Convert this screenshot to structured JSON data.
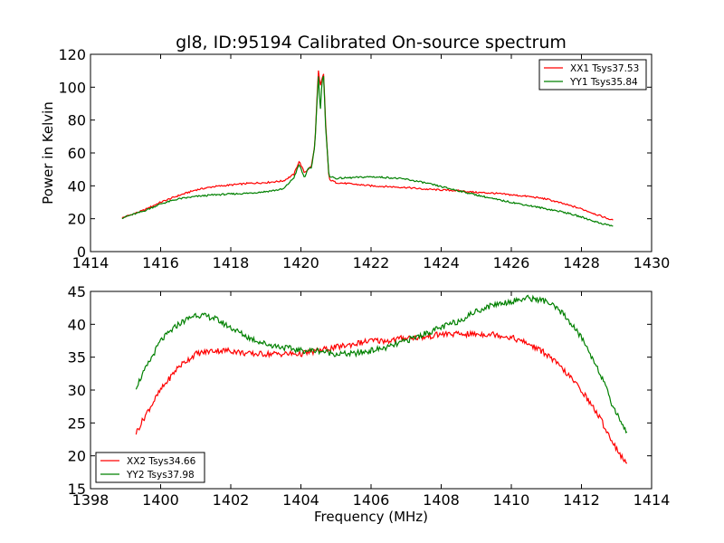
{
  "figure": {
    "title": "gl8, ID:95194 Calibrated On-source spectrum",
    "xlabel": "Frequency (MHz)"
  },
  "chart_data": [
    {
      "type": "line",
      "title": "gl8, ID:95194 Calibrated On-source spectrum",
      "xlabel": "",
      "ylabel": "Power in Kelvin",
      "xlim": [
        1414,
        1430
      ],
      "ylim": [
        0,
        120
      ],
      "xticks": [
        "1414",
        "1416",
        "1418",
        "1420",
        "1422",
        "1424",
        "1426",
        "1428",
        "1430"
      ],
      "yticks": [
        "0",
        "20",
        "40",
        "60",
        "80",
        "100",
        "120"
      ],
      "legend_position": "top-right",
      "grid": false,
      "series": [
        {
          "name": "XX1 Tsys37.53",
          "color": "#ff0000",
          "x": [
            1414.9,
            1415.5,
            1416,
            1416.5,
            1417,
            1417.5,
            1418,
            1418.5,
            1419,
            1419.5,
            1419.8,
            1419.95,
            1420.1,
            1420.2,
            1420.3,
            1420.4,
            1420.45,
            1420.5,
            1420.55,
            1420.6,
            1420.65,
            1420.7,
            1420.8,
            1421,
            1421.5,
            1422,
            1422.5,
            1423,
            1423.5,
            1424,
            1424.5,
            1425,
            1425.5,
            1426,
            1426.5,
            1427,
            1427.5,
            1428,
            1428.5,
            1428.9
          ],
          "y": [
            20.5,
            25,
            30,
            34,
            37.5,
            39.5,
            40.5,
            41.5,
            42,
            43,
            47,
            55,
            48,
            50,
            52,
            65,
            90,
            110,
            100,
            105,
            108,
            80,
            44,
            42,
            41,
            40,
            39.5,
            39,
            38,
            37.5,
            37,
            36,
            35.5,
            34.5,
            33.5,
            32,
            29,
            26,
            22,
            19
          ]
        },
        {
          "name": "YY1 Tsys35.84",
          "color": "#008000",
          "x": [
            1414.9,
            1415.5,
            1416,
            1416.5,
            1417,
            1417.5,
            1418,
            1418.5,
            1419,
            1419.5,
            1419.8,
            1419.95,
            1420.1,
            1420.2,
            1420.3,
            1420.4,
            1420.45,
            1420.5,
            1420.55,
            1420.6,
            1420.65,
            1420.7,
            1420.8,
            1421,
            1421.5,
            1422,
            1422.5,
            1423,
            1423.5,
            1424,
            1424.5,
            1425,
            1425.5,
            1426,
            1426.5,
            1427,
            1427.5,
            1428,
            1428.5,
            1428.9
          ],
          "y": [
            20.5,
            24.5,
            29,
            32,
            33.5,
            34.5,
            35,
            35.5,
            36.5,
            38,
            45,
            53,
            45,
            50,
            51,
            65,
            88,
            107,
            84,
            104,
            107,
            77,
            46,
            44.5,
            45,
            45.5,
            45,
            44,
            42,
            39.5,
            37,
            34.5,
            32,
            30,
            28,
            26,
            24,
            21,
            17.5,
            15.5
          ]
        }
      ]
    },
    {
      "type": "line",
      "title": "",
      "xlabel": "Frequency (MHz)",
      "ylabel": "",
      "xlim": [
        1398,
        1414
      ],
      "ylim": [
        15,
        45
      ],
      "xticks": [
        "1398",
        "1400",
        "1402",
        "1404",
        "1406",
        "1408",
        "1410",
        "1412",
        "1414"
      ],
      "yticks": [
        "15",
        "20",
        "25",
        "30",
        "35",
        "40",
        "45"
      ],
      "legend_position": "bottom-left",
      "grid": false,
      "series": [
        {
          "name": "XX2 Tsys34.66",
          "color": "#ff0000",
          "x": [
            1399.3,
            1399.6,
            1400,
            1400.5,
            1401,
            1401.5,
            1402,
            1402.5,
            1403,
            1403.5,
            1404,
            1404.5,
            1405,
            1405.5,
            1406,
            1406.5,
            1407,
            1407.5,
            1408,
            1408.5,
            1409,
            1409.5,
            1410,
            1410.5,
            1411,
            1411.5,
            1412,
            1412.5,
            1412.9,
            1413.3
          ],
          "y": [
            23.5,
            26.5,
            30,
            33.5,
            35.5,
            36,
            36,
            35.5,
            35.5,
            35.5,
            35.5,
            36,
            36.5,
            37,
            37.5,
            37.5,
            38,
            38,
            38.5,
            38.5,
            38.5,
            38.5,
            38,
            37,
            35.5,
            33,
            30,
            26,
            22,
            18.5
          ]
        },
        {
          "name": "YY2 Tsys37.98",
          "color": "#008000",
          "x": [
            1399.3,
            1399.6,
            1400,
            1400.5,
            1401,
            1401.5,
            1402,
            1402.5,
            1403,
            1403.5,
            1404,
            1404.5,
            1405,
            1405.5,
            1406,
            1406.5,
            1407,
            1407.5,
            1408,
            1408.5,
            1409,
            1409.5,
            1410,
            1410.5,
            1411,
            1411.5,
            1412,
            1412.5,
            1412.9,
            1413.3
          ],
          "y": [
            30.5,
            33.5,
            37.5,
            40,
            41.5,
            41,
            39.5,
            38,
            37,
            36.5,
            36,
            36,
            35.5,
            35.5,
            36,
            36.5,
            37.5,
            38.5,
            39.5,
            40.5,
            42,
            43,
            43.5,
            44,
            43.5,
            41.5,
            38,
            33,
            27.5,
            23.5
          ]
        }
      ]
    }
  ]
}
